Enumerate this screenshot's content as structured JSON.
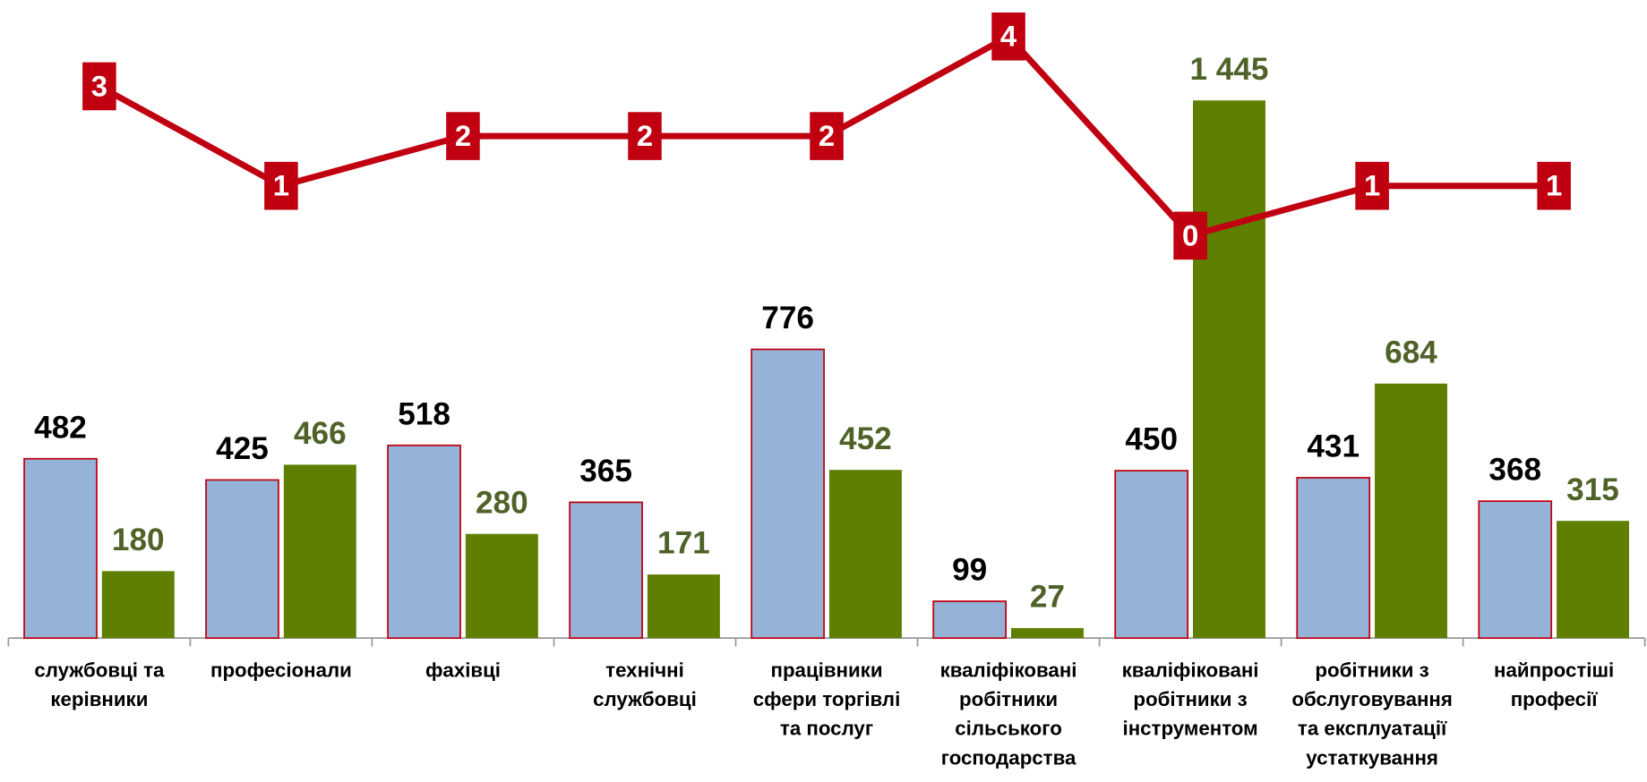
{
  "chart_data": {
    "type": "bar",
    "categories": [
      "службовці та\nкерівники",
      "професіонали",
      "фахівці",
      "технічні\nслужбовці",
      "працівники\nсфери торгівлі\nта послуг",
      "кваліфіковані\nробітники\nсільського\nгосподарства",
      "кваліфіковані\nробітники з\nінструментом",
      "робітники з\nобслуговування\nта експлуатації\nустаткування",
      "найпростіші\nпрофесії"
    ],
    "series": [
      {
        "type": "bar",
        "color": "#95b3d7",
        "values": [
          482,
          425,
          518,
          365,
          776,
          99,
          450,
          431,
          368
        ]
      },
      {
        "type": "bar",
        "color": "#5f7f00",
        "values": [
          180,
          466,
          280,
          171,
          452,
          27,
          1445,
          684,
          315
        ],
        "value_labels": [
          "180",
          "466",
          "280",
          "171",
          "452",
          "27",
          "1 445",
          "684",
          "315"
        ]
      },
      {
        "type": "line",
        "axis": "y2",
        "color": "#c00010",
        "values": [
          3,
          1,
          2,
          2,
          2,
          4,
          0,
          1,
          1
        ]
      }
    ],
    "ylim": [
      0,
      1600
    ],
    "y2lim": [
      0,
      4
    ]
  }
}
